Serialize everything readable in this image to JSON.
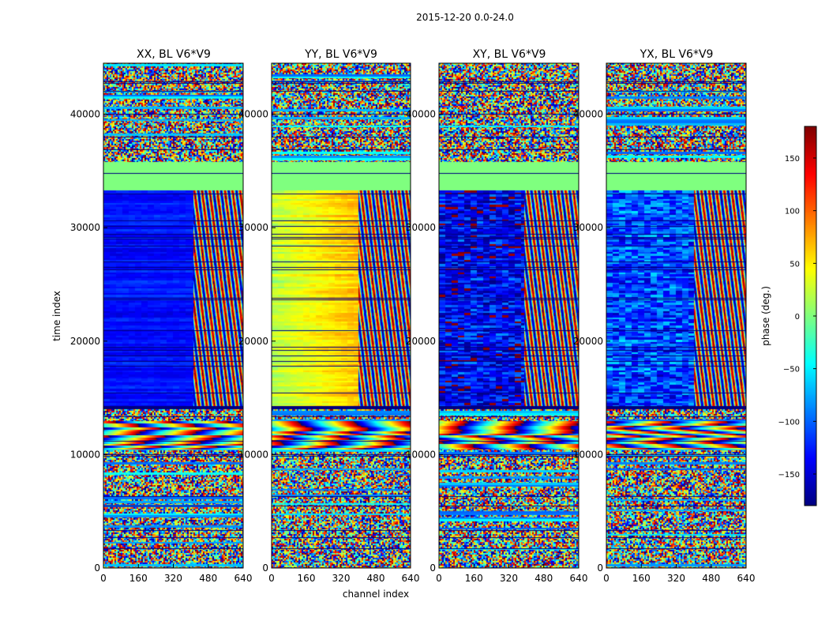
{
  "chart_data": {
    "type": "heatmap",
    "suptitle": "2015-12-20 0.0-24.0",
    "xlabel": "channel index",
    "ylabel": "time index",
    "xlim": [
      0,
      640
    ],
    "ylim": [
      0,
      44500
    ],
    "x_ticks": [
      0,
      160,
      320,
      480,
      640
    ],
    "y_ticks": [
      0,
      10000,
      20000,
      30000,
      40000
    ],
    "x_tick_labels": [
      "0",
      "160",
      "320",
      "480",
      "640"
    ],
    "y_tick_labels": [
      "0",
      "10000",
      "20000",
      "30000",
      "40000"
    ],
    "panels": [
      {
        "title": "XX, BL V6*V9",
        "phase_offset_deg": -130,
        "break_channel": 410
      },
      {
        "title": "YY, BL V6*V9",
        "phase_offset_deg": 20,
        "break_channel": 400
      },
      {
        "title": "XY, BL V6*V9",
        "phase_offset_deg": -140,
        "break_channel": 390
      },
      {
        "title": "YX, BL V6*V9",
        "phase_offset_deg": -110,
        "break_channel": 400
      }
    ],
    "colorbar": {
      "label": "phase (deg.)",
      "range": [
        -180,
        180
      ],
      "ticks": [
        -150,
        -100,
        -50,
        0,
        50,
        100,
        150
      ],
      "tick_labels": [
        "−150",
        "−100",
        "−50",
        "0",
        "50",
        "100",
        "150"
      ],
      "colormap": "jet"
    }
  }
}
